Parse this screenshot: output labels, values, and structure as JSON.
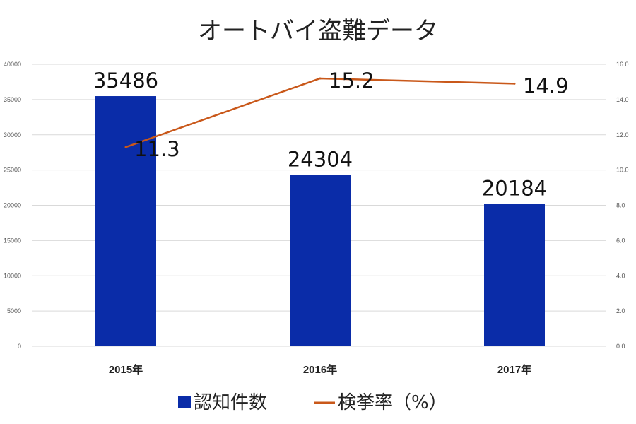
{
  "chart_data": {
    "type": "bar",
    "title": "オートバイ盗難データ",
    "categories": [
      "2015年",
      "2016年",
      "2017年"
    ],
    "series": [
      {
        "name": "認知件数",
        "type": "bar",
        "axis": "left",
        "values": [
          35486,
          24304,
          20184
        ],
        "color": "#0a2ca8"
      },
      {
        "name": "検挙率（%）",
        "type": "line",
        "axis": "right",
        "values": [
          11.3,
          15.2,
          14.9
        ],
        "color": "#c9581a"
      }
    ],
    "y_left": {
      "min": 0,
      "max": 40000,
      "step": 5000,
      "ticks": [
        "0",
        "5000",
        "10000",
        "15000",
        "20000",
        "25000",
        "30000",
        "35000",
        "40000"
      ]
    },
    "y_right": {
      "min": 0,
      "max": 16,
      "step": 2,
      "ticks": [
        "0.0",
        "2.0",
        "4.0",
        "6.0",
        "8.0",
        "10.0",
        "12.0",
        "14.0",
        "16.0"
      ]
    },
    "bar_labels": [
      "35486",
      "24304",
      "20184"
    ],
    "line_labels": [
      "11.3",
      "15.2",
      "14.9"
    ],
    "grid": true,
    "legend": "bottom"
  }
}
